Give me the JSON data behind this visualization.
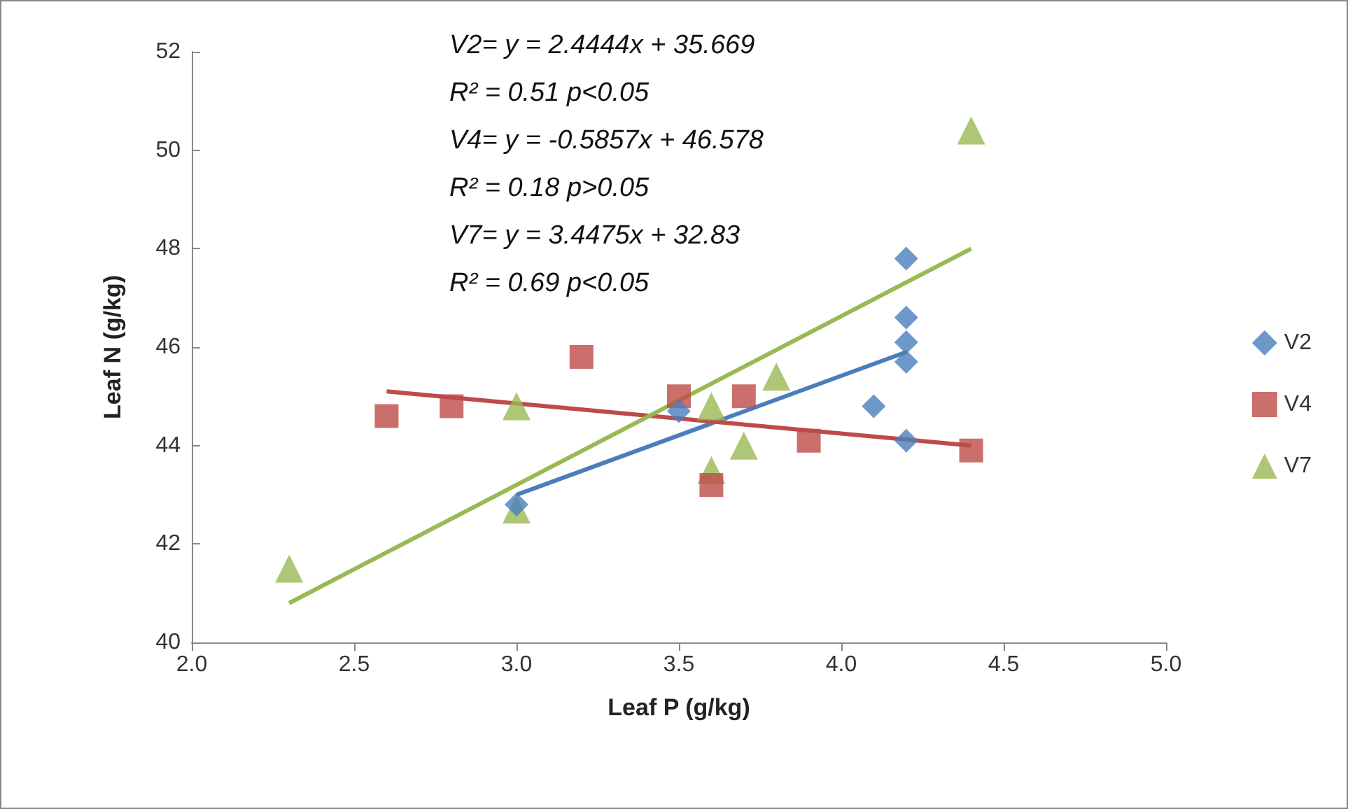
{
  "chart_data": {
    "type": "scatter",
    "xlabel": "Leaf P (g/kg)",
    "ylabel": "Leaf N (g/kg)",
    "annotations": [
      "V2= y = 2.4444x + 35.669",
      "R² = 0.51 p<0.05",
      "V4= y = -0.5857x + 46.578",
      "R² = 0.18 p>0.05",
      "V7= y = 3.4475x + 32.83",
      "R² = 0.69 p<0.05"
    ],
    "xlim": [
      2,
      5
    ],
    "xticks": [
      {
        "value": 2,
        "label": "2.0"
      },
      {
        "value": 2.5,
        "label": "2.5"
      },
      {
        "value": 3,
        "label": "3.0"
      },
      {
        "value": 3.5,
        "label": "3.5"
      },
      {
        "value": 4,
        "label": "4.0"
      },
      {
        "value": 4.5,
        "label": "4.5"
      },
      {
        "value": 5,
        "label": "5.0"
      }
    ],
    "ylim": [
      40,
      52
    ],
    "yticks": [
      40,
      42,
      44,
      46,
      48,
      50,
      52
    ],
    "grid": false,
    "legend": "right",
    "series": [
      {
        "name": "V2",
        "color": "#4a7ebb",
        "marker": "diamond",
        "x": [
          3.0,
          3.5,
          4.1,
          4.2,
          4.2,
          4.2,
          4.2,
          4.2
        ],
        "values": [
          42.8,
          44.7,
          44.8,
          44.1,
          45.7,
          46.1,
          46.6,
          47.8
        ]
      },
      {
        "name": "V4",
        "color": "#be4b48",
        "marker": "square",
        "x": [
          2.6,
          2.8,
          3.2,
          3.5,
          3.6,
          3.7,
          3.9,
          4.4
        ],
        "values": [
          44.6,
          44.8,
          45.8,
          45.0,
          43.2,
          45.0,
          44.1,
          43.9
        ]
      },
      {
        "name": "V7",
        "color": "#98b954",
        "marker": "triangle",
        "x": [
          2.3,
          3.0,
          3.0,
          3.6,
          3.6,
          3.7,
          3.8,
          4.4
        ],
        "values": [
          41.5,
          44.8,
          42.7,
          44.8,
          43.5,
          44.0,
          45.4,
          50.4
        ]
      },
      {
        "type": "line",
        "color": "#4a7ebb",
        "marker": "none",
        "x": [
          3.0,
          4.2
        ],
        "values": [
          43.0,
          45.9
        ]
      },
      {
        "type": "line",
        "color": "#be4b48",
        "marker": "none",
        "x": [
          2.6,
          4.4
        ],
        "values": [
          45.1,
          44.0
        ]
      },
      {
        "type": "line",
        "color": "#98b954",
        "marker": "none",
        "x": [
          2.3,
          4.4
        ],
        "values": [
          40.8,
          48.0
        ]
      }
    ]
  }
}
